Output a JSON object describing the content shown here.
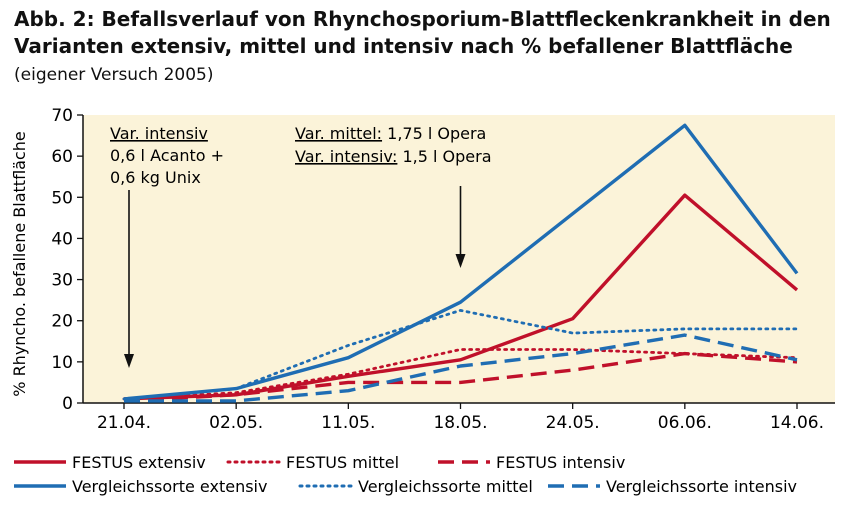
{
  "title": {
    "bold": "Abb. 2: Befallsverlauf von Rhynchosporium-Blattfleckenkrankheit in den Varianten extensiv, mittel und intensiv nach % befallener Blattfläche",
    "normal": "(eigener Versuch 2005)"
  },
  "chart_data": {
    "type": "line",
    "categories": [
      "21.04.",
      "02.05.",
      "11.05.",
      "18.05.",
      "24.05.",
      "06.06.",
      "14.06."
    ],
    "ylabel": "% Rhyncho. befallene Blattfläche",
    "ylim": [
      0,
      70
    ],
    "yticks": [
      0,
      10,
      20,
      30,
      40,
      50,
      60,
      70
    ],
    "grid": false,
    "legend_position": "bottom",
    "series": [
      {
        "name": "FESTUS extensiv",
        "color": "#c0102a",
        "style": "solid",
        "values": [
          1,
          2,
          6.5,
          10.5,
          20.5,
          50.5,
          27.5
        ]
      },
      {
        "name": "FESTUS mittel",
        "color": "#c0102a",
        "style": "dotted",
        "values": [
          1,
          2.5,
          7,
          13,
          13,
          12,
          11
        ]
      },
      {
        "name": "FESTUS intensiv",
        "color": "#c0102a",
        "style": "dashed",
        "values": [
          0.5,
          2,
          5,
          5,
          8,
          12,
          10
        ]
      },
      {
        "name": "Vergleichssorte extensiv",
        "color": "#1f6db3",
        "style": "solid",
        "values": [
          1,
          3.5,
          11,
          24.5,
          46,
          67.5,
          31.5
        ]
      },
      {
        "name": "Vergleichssorte mittel",
        "color": "#1f6db3",
        "style": "dotted",
        "values": [
          1,
          3.5,
          14,
          22.5,
          17,
          18,
          18
        ]
      },
      {
        "name": "Vergleichssorte intensiv",
        "color": "#1f6db3",
        "style": "dashed",
        "values": [
          0.5,
          0.5,
          3,
          9,
          12,
          16.5,
          10.5
        ]
      }
    ],
    "annotations": [
      {
        "lines": [
          "Var. intensiv",
          "0,6 l Acanto +",
          "0,6 kg Unix"
        ],
        "arrow_at": "21.04."
      },
      {
        "lines": [
          "Var. mittel: 1,75 l Opera",
          "Var. intensiv: 1,5 l Opera"
        ],
        "arrow_at": "18.05."
      }
    ]
  }
}
